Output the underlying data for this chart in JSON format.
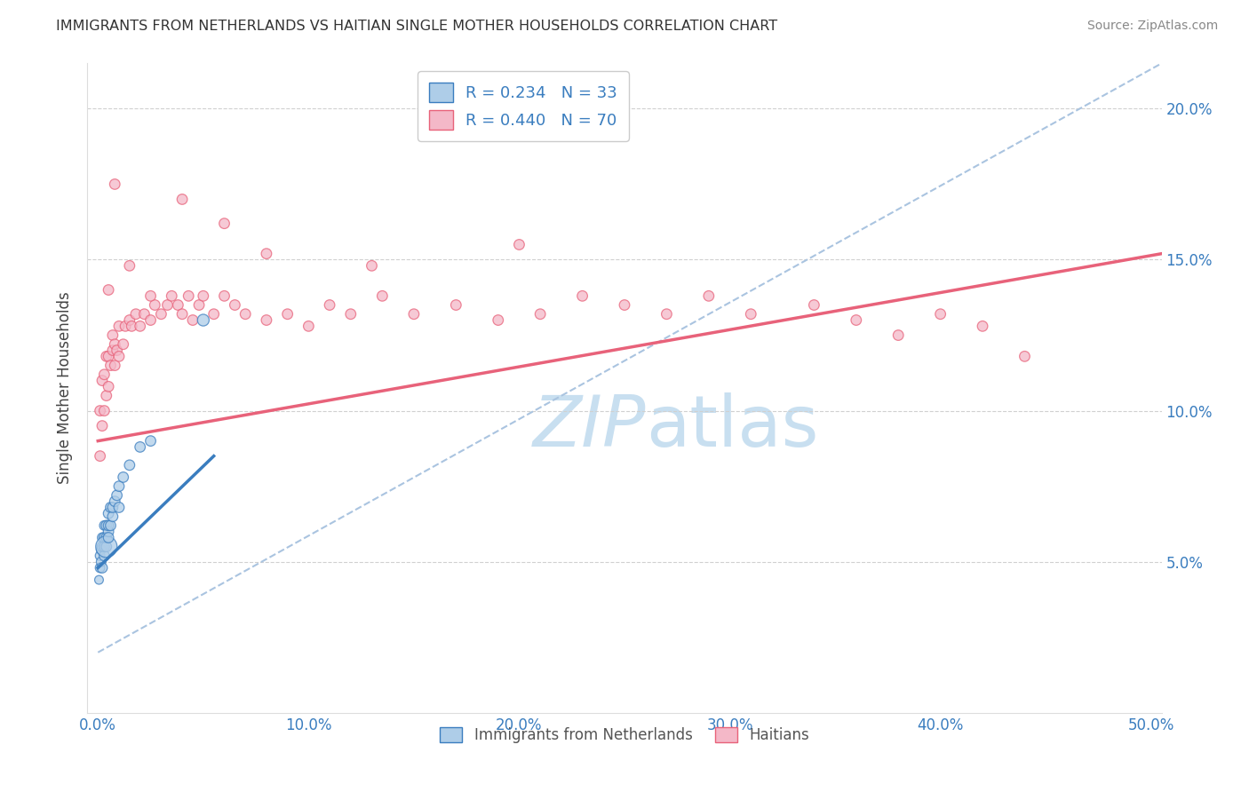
{
  "title": "IMMIGRANTS FROM NETHERLANDS VS HAITIAN SINGLE MOTHER HOUSEHOLDS CORRELATION CHART",
  "source": "Source: ZipAtlas.com",
  "ylabel": "Single Mother Households",
  "xlabel_blue": "Immigrants from Netherlands",
  "xlabel_pink": "Haitians",
  "xlim": [
    -0.005,
    0.505
  ],
  "ylim": [
    0.0,
    0.215
  ],
  "yticks": [
    0.05,
    0.1,
    0.15,
    0.2
  ],
  "ytick_labels": [
    "5.0%",
    "10.0%",
    "15.0%",
    "20.0%"
  ],
  "xticks": [
    0.0,
    0.1,
    0.2,
    0.3,
    0.4,
    0.5
  ],
  "xtick_labels": [
    "0.0%",
    "10.0%",
    "20.0%",
    "30.0%",
    "40.0%",
    "50.0%"
  ],
  "legend_blue_R": "0.234",
  "legend_blue_N": "33",
  "legend_pink_R": "0.440",
  "legend_pink_N": "70",
  "blue_color": "#aecde8",
  "pink_color": "#f4b8c8",
  "blue_line_color": "#3a7dbf",
  "pink_line_color": "#e8627a",
  "dashed_color": "#aac4e0",
  "watermark_color": "#c8dff0",
  "blue_scatter_x": [
    0.0005,
    0.001,
    0.001,
    0.0015,
    0.0015,
    0.002,
    0.002,
    0.002,
    0.003,
    0.003,
    0.003,
    0.003,
    0.004,
    0.004,
    0.004,
    0.004,
    0.005,
    0.005,
    0.005,
    0.005,
    0.006,
    0.006,
    0.007,
    0.007,
    0.008,
    0.009,
    0.01,
    0.01,
    0.012,
    0.015,
    0.02,
    0.025,
    0.05
  ],
  "blue_scatter_y": [
    0.044,
    0.048,
    0.052,
    0.05,
    0.054,
    0.048,
    0.055,
    0.058,
    0.052,
    0.055,
    0.058,
    0.062,
    0.055,
    0.058,
    0.062,
    0.055,
    0.06,
    0.058,
    0.062,
    0.066,
    0.062,
    0.068,
    0.065,
    0.068,
    0.07,
    0.072,
    0.075,
    0.068,
    0.078,
    0.082,
    0.088,
    0.09,
    0.13
  ],
  "blue_scatter_sizes": [
    50,
    60,
    60,
    60,
    60,
    70,
    70,
    60,
    70,
    70,
    70,
    60,
    70,
    70,
    70,
    300,
    70,
    70,
    70,
    70,
    70,
    70,
    70,
    70,
    70,
    70,
    70,
    70,
    70,
    70,
    70,
    70,
    90
  ],
  "pink_scatter_x": [
    0.001,
    0.001,
    0.002,
    0.002,
    0.003,
    0.003,
    0.004,
    0.004,
    0.005,
    0.005,
    0.006,
    0.007,
    0.007,
    0.008,
    0.008,
    0.009,
    0.01,
    0.01,
    0.012,
    0.013,
    0.015,
    0.016,
    0.018,
    0.02,
    0.022,
    0.025,
    0.027,
    0.03,
    0.033,
    0.035,
    0.038,
    0.04,
    0.043,
    0.045,
    0.048,
    0.05,
    0.055,
    0.06,
    0.065,
    0.07,
    0.08,
    0.09,
    0.1,
    0.11,
    0.12,
    0.135,
    0.15,
    0.17,
    0.19,
    0.21,
    0.23,
    0.25,
    0.27,
    0.29,
    0.31,
    0.34,
    0.36,
    0.38,
    0.4,
    0.42,
    0.44,
    0.005,
    0.015,
    0.025,
    0.008,
    0.04,
    0.06,
    0.08,
    0.13,
    0.2
  ],
  "pink_scatter_y": [
    0.085,
    0.1,
    0.095,
    0.11,
    0.1,
    0.112,
    0.105,
    0.118,
    0.108,
    0.118,
    0.115,
    0.12,
    0.125,
    0.115,
    0.122,
    0.12,
    0.118,
    0.128,
    0.122,
    0.128,
    0.13,
    0.128,
    0.132,
    0.128,
    0.132,
    0.13,
    0.135,
    0.132,
    0.135,
    0.138,
    0.135,
    0.132,
    0.138,
    0.13,
    0.135,
    0.138,
    0.132,
    0.138,
    0.135,
    0.132,
    0.13,
    0.132,
    0.128,
    0.135,
    0.132,
    0.138,
    0.132,
    0.135,
    0.13,
    0.132,
    0.138,
    0.135,
    0.132,
    0.138,
    0.132,
    0.135,
    0.13,
    0.125,
    0.132,
    0.128,
    0.118,
    0.14,
    0.148,
    0.138,
    0.175,
    0.17,
    0.162,
    0.152,
    0.148,
    0.155
  ],
  "pink_scatter_sizes": [
    70,
    70,
    70,
    70,
    70,
    70,
    70,
    70,
    70,
    70,
    70,
    70,
    70,
    70,
    70,
    70,
    70,
    70,
    70,
    70,
    70,
    70,
    70,
    70,
    70,
    70,
    70,
    70,
    70,
    70,
    70,
    70,
    70,
    70,
    70,
    70,
    70,
    70,
    70,
    70,
    70,
    70,
    70,
    70,
    70,
    70,
    70,
    70,
    70,
    70,
    70,
    70,
    70,
    70,
    70,
    70,
    70,
    70,
    70,
    70,
    70,
    70,
    70,
    70,
    70,
    70,
    70,
    70,
    70,
    70
  ],
  "dashed_line_x": [
    0.0,
    0.505
  ],
  "dashed_line_y": [
    0.02,
    0.215
  ],
  "blue_trend_x": [
    0.0,
    0.055
  ],
  "blue_trend_y": [
    0.048,
    0.085
  ],
  "pink_trend_x": [
    0.0,
    0.505
  ],
  "pink_trend_y": [
    0.09,
    0.152
  ]
}
